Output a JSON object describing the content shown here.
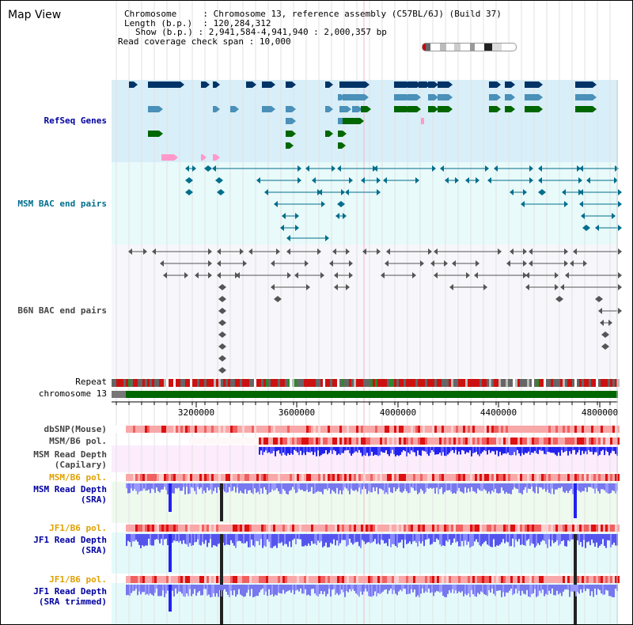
{
  "header": {
    "title": "Map View",
    "chromosome_label": "Chromosome",
    "chromosome_value": "Chromosome 13, reference assembly (C57BL/6J) (Build 37)",
    "length_label": "Length (b.p.)",
    "length_value": "120,284,312",
    "show_label": "Show (b.p.)",
    "show_value": "2,941,584-4,941,940 : 2,000,357 bp",
    "coverage_label": "Read coverage check span",
    "coverage_value": "10,000"
  },
  "tracks": {
    "refseq": "RefSeq Genes",
    "msm_bac": "MSM BAC end pairs",
    "b6n_bac": "B6N BAC end pairs",
    "repeat": "Repeat",
    "chromosome": "chromosome 13",
    "dbsnp": "dbSNP(Mouse)",
    "msm_b6_pol_1": "MSM/B6 pol.",
    "msm_read_depth_cap_1": "MSM Read Depth",
    "msm_read_depth_cap_2": "(Capilary)",
    "msm_b6_pol_2": "MSM/B6 pol.",
    "msm_read_depth_sra_1": "MSM Read Depth",
    "msm_read_depth_sra_2": "(SRA)",
    "jf1_b6_pol_1": "JF1/B6 pol.",
    "jf1_read_depth_sra_1": "JF1 Read Depth",
    "jf1_read_depth_sra_2": "(SRA)",
    "jf1_b6_pol_2": "JF1/B6 pol.",
    "jf1_read_depth_trim_1": "JF1 Read Depth",
    "jf1_read_depth_trim_2": "(SRA trimmed)"
  },
  "axis": {
    "ticks": [
      "3200000",
      "3600000",
      "4000000",
      "4400000",
      "4800000"
    ]
  },
  "colors": {
    "refseq_bg": "#d8eef8",
    "bac_bg": "#e8fafa",
    "b6n_bg": "#f4f4fa",
    "gene_dark": "#003366",
    "gene_mid": "#4a90b8",
    "gene_green": "#006600",
    "gene_pink": "#ff99cc",
    "msm_color": "#006e8c",
    "b6n_color": "#555555",
    "depth_blue": "#2222ee",
    "depth_light": "#7777ee"
  }
}
